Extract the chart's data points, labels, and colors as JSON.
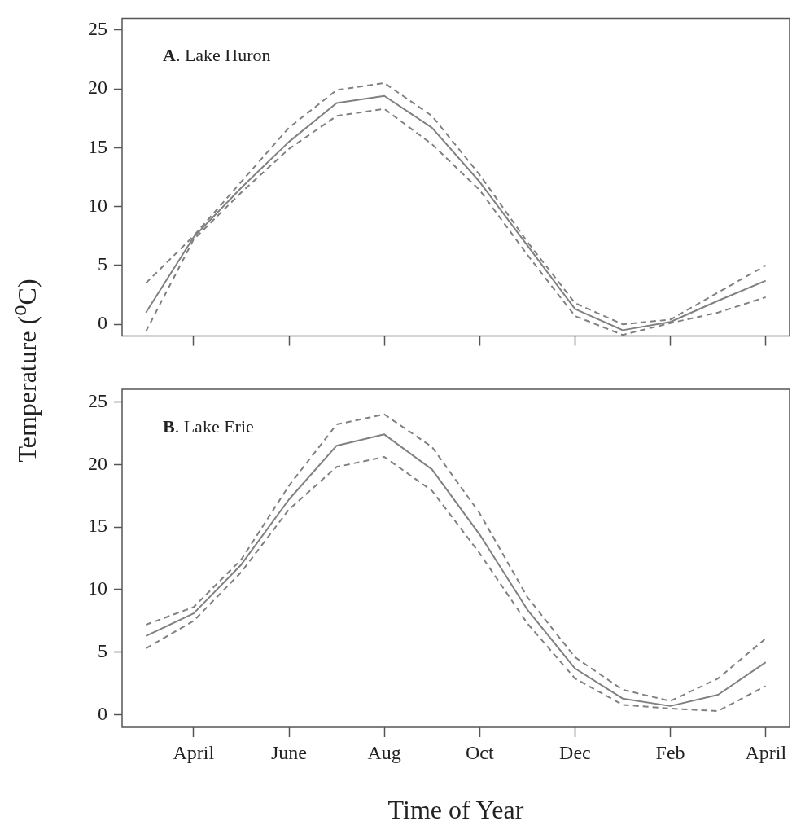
{
  "chart_data": [
    {
      "type": "line",
      "title": "A. Lake Huron",
      "categories": [
        null,
        null,
        null,
        null,
        null,
        null,
        null,
        null,
        null,
        null,
        null,
        null,
        null,
        null
      ],
      "series": [
        {
          "color": "#808080",
          "line_style": "solid",
          "values": [
            1.0,
            7.4,
            11.6,
            15.5,
            18.8,
            19.4,
            16.7,
            12.1,
            6.7,
            1.3,
            -0.5,
            0.2,
            2.0,
            3.7
          ]
        },
        {
          "color": "#808080",
          "line_style": "dashed",
          "values": [
            3.5,
            7.5,
            12.1,
            16.7,
            19.9,
            20.5,
            17.7,
            12.7,
            7.0,
            1.8,
            0.0,
            0.4,
            2.7,
            5.0
          ]
        },
        {
          "color": "#808080",
          "line_style": "dashed",
          "values": [
            -0.6,
            7.2,
            11.2,
            14.9,
            17.7,
            18.3,
            15.3,
            11.4,
            5.9,
            0.7,
            -0.9,
            0.1,
            1.0,
            2.3
          ]
        }
      ],
      "ylim": [
        -1,
        26
      ],
      "yticks": [
        0,
        5,
        10,
        15,
        20,
        25
      ],
      "tick_labels": "y",
      "marker": "none"
    },
    {
      "type": "line",
      "title": "B. Lake Erie",
      "xlabel": "Time of Year",
      "ylabel": "Temperature ($^{o}$C)",
      "categories": [
        null,
        "April",
        null,
        "June",
        null,
        "Aug",
        null,
        "Oct",
        null,
        "Dec",
        null,
        "Feb",
        null,
        "April"
      ],
      "series": [
        {
          "color": "#808080",
          "line_style": "solid",
          "values": [
            6.3,
            8.1,
            12.0,
            17.2,
            21.5,
            22.4,
            19.6,
            14.4,
            8.4,
            3.7,
            1.3,
            0.7,
            1.6,
            4.2
          ]
        },
        {
          "color": "#808080",
          "line_style": "dashed",
          "values": [
            7.2,
            8.6,
            12.4,
            18.3,
            23.2,
            24.0,
            21.4,
            16.1,
            9.4,
            4.6,
            2.0,
            1.1,
            2.9,
            6.1
          ]
        },
        {
          "color": "#808080",
          "line_style": "dashed",
          "values": [
            5.3,
            7.5,
            11.4,
            16.4,
            19.8,
            20.6,
            17.9,
            12.9,
            7.3,
            2.9,
            0.8,
            0.5,
            0.3,
            2.3
          ]
        }
      ],
      "ylim": [
        -1,
        26
      ],
      "yticks": [
        0,
        5,
        10,
        15,
        20,
        25
      ],
      "marker": "none"
    }
  ]
}
